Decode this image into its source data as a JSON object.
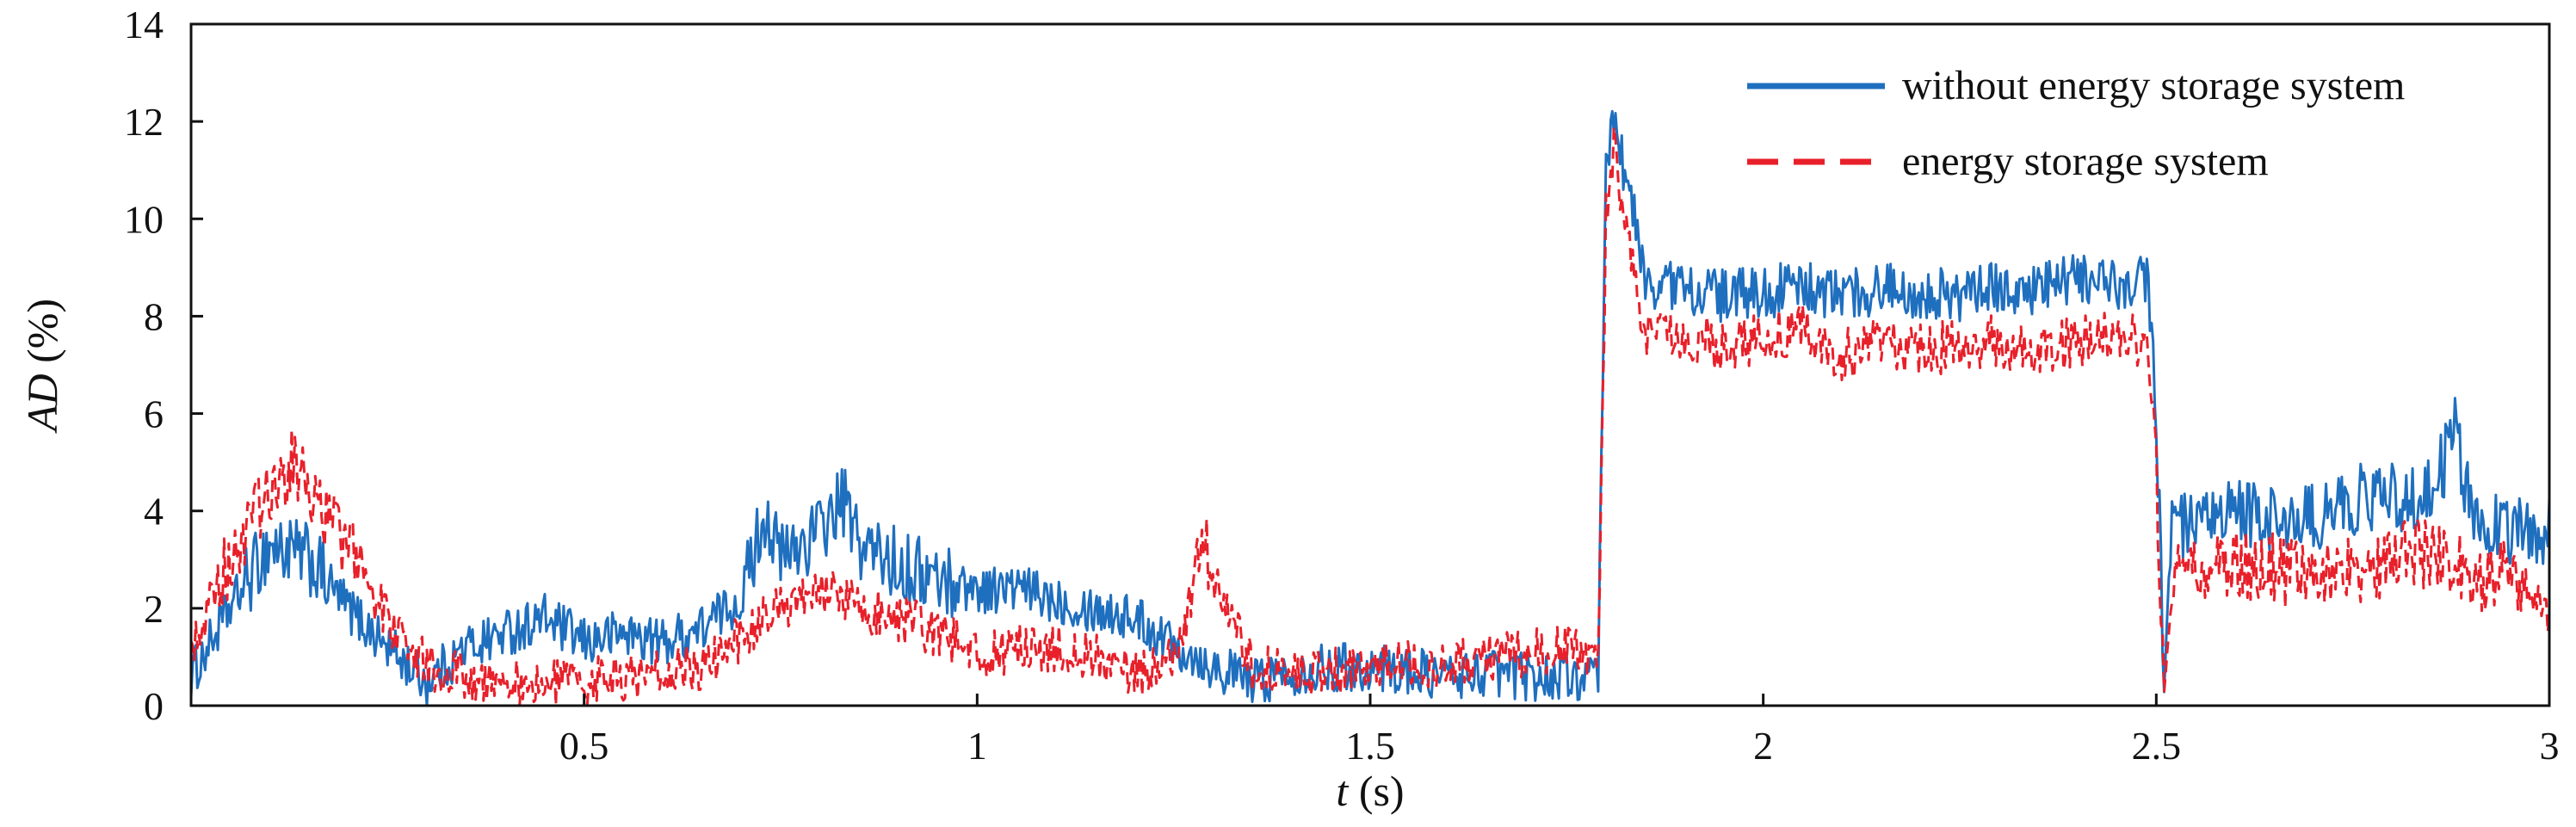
{
  "chart_data": {
    "type": "line",
    "title": "",
    "xlabel": "t (s)",
    "xlabel_var": "t",
    "xlabel_unit": " (s)",
    "ylabel": "AD (%)",
    "ylabel_var": "AD",
    "ylabel_unit": " (%)",
    "xlim": [
      0,
      3
    ],
    "ylim": [
      0,
      14
    ],
    "x_ticks": [
      0.5,
      1,
      1.5,
      2,
      2.5,
      3
    ],
    "x_tick_labels": [
      "0.5",
      "1",
      "1.5",
      "2",
      "2.5",
      "3"
    ],
    "y_ticks": [
      0,
      2,
      4,
      6,
      8,
      10,
      12,
      14
    ],
    "y_tick_labels": [
      "0",
      "2",
      "4",
      "6",
      "8",
      "10",
      "12",
      "14"
    ],
    "grid": false,
    "legend_position": "top-right",
    "series": [
      {
        "name": "without energy storage system",
        "color": "#1f6fbf",
        "style": "solid",
        "x": [
          0,
          0.05,
          0.1,
          0.15,
          0.2,
          0.25,
          0.3,
          0.35,
          0.4,
          0.45,
          0.5,
          0.55,
          0.6,
          0.65,
          0.7,
          0.73,
          0.75,
          0.8,
          0.83,
          0.85,
          0.9,
          0.95,
          1.0,
          1.05,
          1.1,
          1.15,
          1.2,
          1.25,
          1.3,
          1.35,
          1.4,
          1.45,
          1.5,
          1.55,
          1.6,
          1.65,
          1.7,
          1.75,
          1.79,
          1.8,
          1.81,
          1.83,
          1.85,
          1.9,
          1.95,
          2.0,
          2.05,
          2.1,
          2.15,
          2.2,
          2.25,
          2.3,
          2.35,
          2.4,
          2.45,
          2.49,
          2.5,
          2.51,
          2.52,
          2.55,
          2.6,
          2.65,
          2.7,
          2.75,
          2.8,
          2.85,
          2.88,
          2.9,
          2.95,
          3.0
        ],
        "values": [
          0.6,
          2.0,
          3.3,
          3.0,
          2.0,
          1.2,
          0.5,
          1.2,
          1.5,
          1.8,
          1.3,
          1.5,
          1.3,
          1.6,
          2.2,
          4.0,
          3.0,
          3.6,
          4.2,
          3.3,
          2.9,
          2.6,
          2.4,
          2.4,
          2.2,
          2.0,
          1.8,
          1.3,
          0.8,
          0.5,
          0.7,
          0.8,
          0.8,
          0.7,
          0.6,
          0.7,
          0.6,
          0.6,
          0.5,
          11.0,
          12.1,
          10.5,
          8.7,
          8.6,
          8.4,
          8.5,
          8.6,
          8.4,
          8.6,
          8.5,
          8.4,
          8.6,
          8.5,
          8.8,
          8.6,
          8.8,
          6.0,
          0.3,
          3.8,
          3.5,
          4.0,
          3.8,
          3.8,
          4.2,
          4.3,
          4.3,
          5.6,
          4.0,
          3.6,
          3.6
        ]
      },
      {
        "name": "energy storage system",
        "color": "#e8202a",
        "style": "dashed",
        "x": [
          0,
          0.05,
          0.1,
          0.13,
          0.15,
          0.2,
          0.25,
          0.3,
          0.35,
          0.4,
          0.45,
          0.5,
          0.55,
          0.6,
          0.65,
          0.7,
          0.75,
          0.8,
          0.85,
          0.9,
          0.95,
          1.0,
          1.05,
          1.1,
          1.15,
          1.2,
          1.25,
          1.29,
          1.3,
          1.35,
          1.4,
          1.45,
          1.5,
          1.55,
          1.6,
          1.65,
          1.7,
          1.75,
          1.79,
          1.8,
          1.81,
          1.83,
          1.85,
          1.9,
          1.95,
          2.0,
          2.05,
          2.1,
          2.15,
          2.2,
          2.25,
          2.3,
          2.35,
          2.4,
          2.45,
          2.49,
          2.5,
          2.51,
          2.52,
          2.55,
          2.6,
          2.65,
          2.7,
          2.75,
          2.8,
          2.85,
          2.9,
          2.95,
          3.0
        ],
        "values": [
          1.2,
          3.0,
          4.3,
          5.0,
          4.5,
          3.2,
          1.8,
          0.8,
          0.6,
          0.5,
          0.4,
          0.5,
          0.6,
          0.7,
          0.8,
          1.4,
          2.0,
          2.4,
          2.0,
          1.8,
          1.5,
          1.0,
          1.2,
          1.2,
          1.0,
          0.6,
          0.9,
          3.3,
          2.6,
          0.8,
          0.6,
          0.7,
          0.8,
          0.9,
          0.8,
          1.0,
          1.1,
          1.2,
          0.8,
          10.0,
          11.4,
          9.5,
          7.5,
          7.6,
          7.4,
          7.5,
          7.8,
          7.2,
          7.4,
          7.3,
          7.4,
          7.5,
          7.2,
          7.5,
          7.6,
          7.4,
          5.0,
          0.2,
          2.6,
          2.6,
          3.0,
          2.8,
          2.6,
          2.8,
          3.0,
          3.2,
          2.6,
          2.9,
          1.8
        ]
      }
    ]
  }
}
